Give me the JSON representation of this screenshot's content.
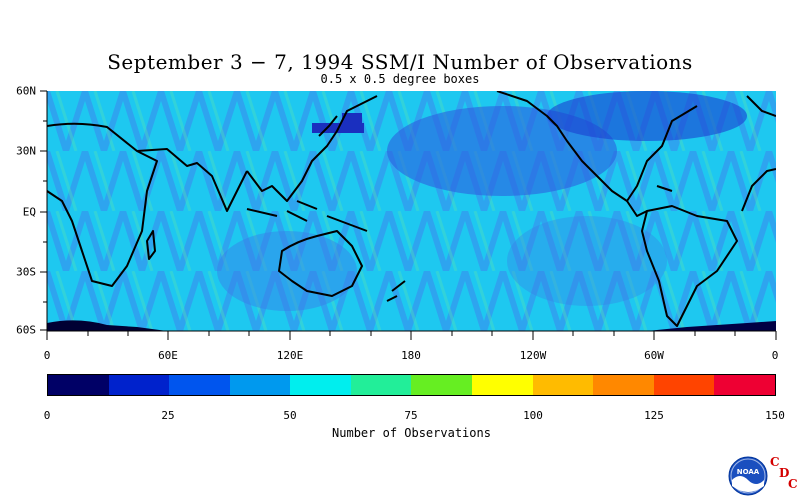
{
  "title": "September 3 − 7, 1994 SSM/I Number of Observations",
  "subtitle": "0.5 x 0.5 degree boxes",
  "latitude_labels": [
    "60N",
    "30N",
    "EQ",
    "30S",
    "60S"
  ],
  "longitude_labels": [
    "0",
    "60E",
    "120E",
    "180",
    "120W",
    "60W",
    "0"
  ],
  "colorbar": {
    "title": "Number of Observations",
    "tick_labels": [
      "0",
      "25",
      "50",
      "75",
      "100",
      "125",
      "150"
    ],
    "colors": [
      "#000066",
      "#0022cc",
      "#0055ee",
      "#0099ee",
      "#00eeee",
      "#22ee99",
      "#66ee22",
      "#ffff00",
      "#ffbb00",
      "#ff8800",
      "#ff4400",
      "#ee0033"
    ]
  },
  "logo": {
    "name": "noaa-logo",
    "text": "NOAA",
    "letters": [
      "C",
      "D",
      "C"
    ]
  }
}
